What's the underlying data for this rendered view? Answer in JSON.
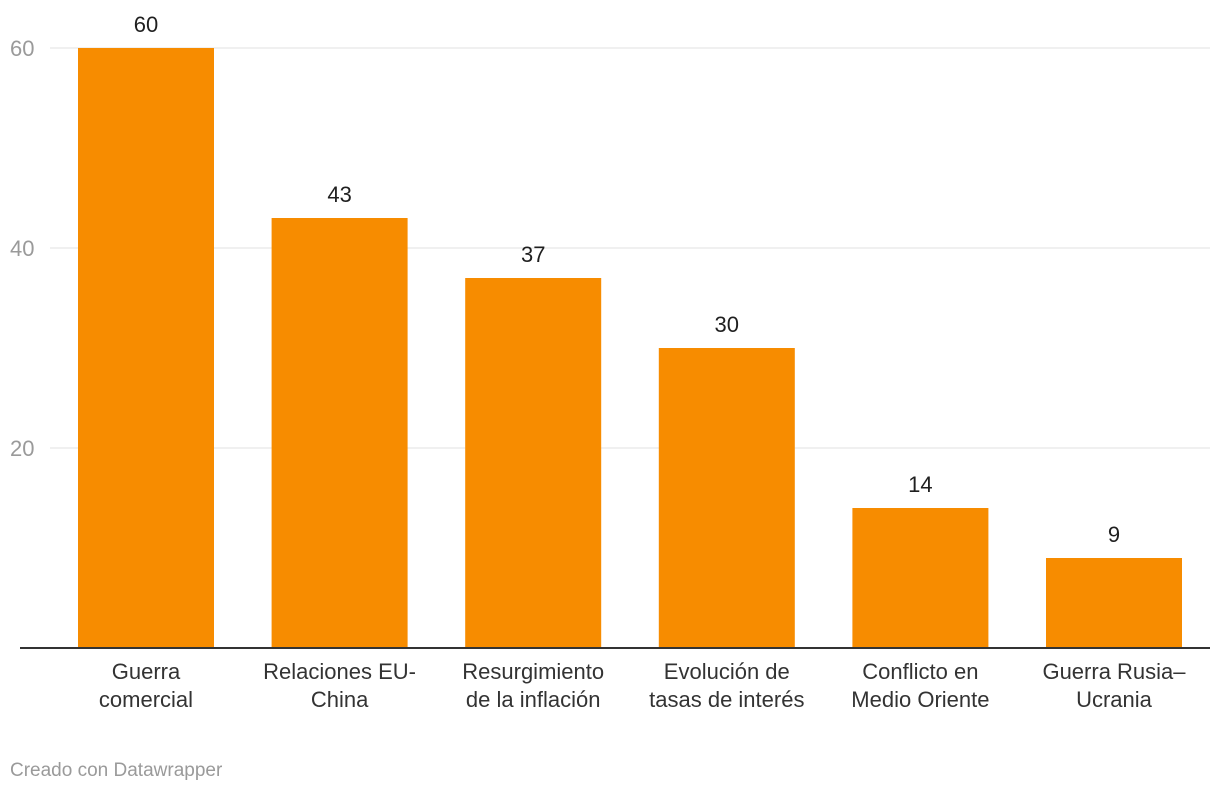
{
  "chart_data": {
    "type": "bar",
    "categories": [
      [
        "Guerra",
        "comercial"
      ],
      [
        "Relaciones EU-",
        "China"
      ],
      [
        "Resurgimiento",
        "de la inflación"
      ],
      [
        "Evolución de",
        "tasas de interés"
      ],
      [
        "Conflicto en",
        "Medio Oriente"
      ],
      [
        "Guerra Rusia–",
        "Ucrania"
      ]
    ],
    "values": [
      60,
      43,
      37,
      30,
      14,
      9
    ],
    "ylim": [
      0,
      60
    ],
    "yticks": [
      20,
      40,
      60
    ],
    "grid": true,
    "bar_color": "#f78c00",
    "show_value_labels": true
  },
  "credit": "Creado con Datawrapper"
}
